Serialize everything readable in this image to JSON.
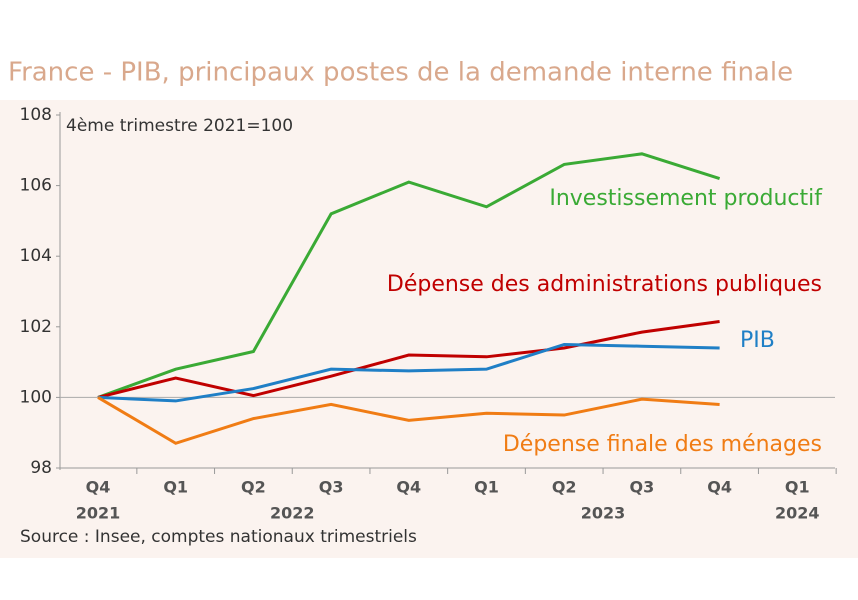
{
  "chart_data": {
    "type": "line",
    "title": "France - PIB, principaux postes de la demande interne finale",
    "subtitle": "4ème trimestre 2021=100",
    "source": "Source : Insee, comptes nationaux trimestriels",
    "categories": [
      "Q4",
      "Q1",
      "Q2",
      "Q3",
      "Q4",
      "Q1",
      "Q2",
      "Q3",
      "Q4",
      "Q1"
    ],
    "category_years": [
      "2021",
      "2022",
      "2022",
      "2022",
      "2022",
      "2023",
      "2023",
      "2023",
      "2023",
      "2024"
    ],
    "ylim": [
      98,
      108
    ],
    "yticks": [
      98,
      100,
      102,
      104,
      106,
      108
    ],
    "series": [
      {
        "name": "Investissement productif",
        "color": "#3aaa35",
        "values": [
          100,
          100.8,
          101.3,
          105.2,
          106.1,
          105.4,
          106.6,
          106.9,
          106.2,
          null
        ]
      },
      {
        "name": "Dépense des administrations publiques",
        "color": "#c00000",
        "values": [
          100,
          100.55,
          100.05,
          100.6,
          101.2,
          101.15,
          101.4,
          101.85,
          102.15,
          null
        ]
      },
      {
        "name": "PIB",
        "color": "#1f7fc6",
        "values": [
          100,
          99.9,
          100.25,
          100.8,
          100.75,
          100.8,
          101.5,
          101.45,
          101.4,
          null
        ]
      },
      {
        "name": "Dépense finale des ménages",
        "color": "#f07c14",
        "values": [
          100,
          98.7,
          99.4,
          99.8,
          99.35,
          99.55,
          99.5,
          99.95,
          99.8,
          null
        ]
      }
    ]
  }
}
